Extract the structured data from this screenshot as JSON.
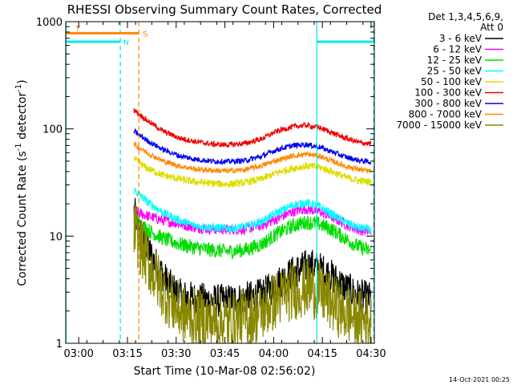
{
  "chart_data": {
    "type": "line",
    "title": "RHESSI Observing Summary Count Rates, Corrected",
    "xlabel": "Start Time (10-Mar-08 02:56:02)",
    "ylabel_main": "Corrected Count Rate (s",
    "ylabel_sup1": "-1",
    "ylabel_mid": " detector",
    "ylabel_sup2": "-1",
    "ylabel_end": ")",
    "yscale": "log",
    "ylim": [
      1,
      1000
    ],
    "xlim": [
      0,
      95
    ],
    "x_unit": "minutes since start",
    "x_ticks": [
      {
        "v": 4,
        "label": "03:00"
      },
      {
        "v": 19,
        "label": "03:15"
      },
      {
        "v": 34,
        "label": "03:30"
      },
      {
        "v": 49,
        "label": "03:45"
      },
      {
        "v": 64,
        "label": "04:00"
      },
      {
        "v": 79,
        "label": "04:15"
      },
      {
        "v": 94,
        "label": "04:30"
      }
    ],
    "y_ticks": [
      {
        "v": 1,
        "label": "1"
      },
      {
        "v": 10,
        "label": "10"
      },
      {
        "v": 100,
        "label": "100"
      },
      {
        "v": 1000,
        "label": "1000"
      }
    ],
    "legend": {
      "header1": "Det 1,3,4,5,6,9,",
      "header2": "Att 0",
      "entries": [
        {
          "label": "3 - 6 keV",
          "color": "#000000"
        },
        {
          "label": "6 - 12 keV",
          "color": "#ff00ff"
        },
        {
          "label": "12 - 25 keV",
          "color": "#00dd00"
        },
        {
          "label": "25 - 50 keV",
          "color": "#00ffff"
        },
        {
          "label": "50 - 100 keV",
          "color": "#dddd00"
        },
        {
          "label": "100 - 300 keV",
          "color": "#ee0000"
        },
        {
          "label": "300 - 800 keV",
          "color": "#0000ee"
        },
        {
          "label": "800 - 7000 keV",
          "color": "#ff8800"
        },
        {
          "label": "7000 - 15000 keV",
          "color": "#888800"
        }
      ]
    },
    "series": [
      {
        "name": "3 - 6 keV",
        "color": "#000000",
        "points": [
          [
            21,
            17
          ],
          [
            23,
            11
          ],
          [
            25,
            8
          ],
          [
            27,
            6
          ],
          [
            29,
            4.8
          ],
          [
            31,
            3.8
          ],
          [
            33,
            3.2
          ],
          [
            35,
            2.8
          ],
          [
            37,
            2.7
          ],
          [
            40,
            2.6
          ],
          [
            45,
            2.5
          ],
          [
            50,
            2.5
          ],
          [
            55,
            2.6
          ],
          [
            60,
            2.8
          ],
          [
            63,
            3.2
          ],
          [
            66,
            3.8
          ],
          [
            70,
            4.6
          ],
          [
            74,
            5.2
          ],
          [
            76,
            5.3
          ],
          [
            78,
            5.0
          ],
          [
            82,
            4.2
          ],
          [
            86,
            3.3
          ],
          [
            90,
            2.8
          ],
          [
            94,
            2.6
          ]
        ],
        "noise": 0.16
      },
      {
        "name": "6 - 12 keV",
        "color": "#ff00ff",
        "points": [
          [
            21,
            17
          ],
          [
            25,
            15.5
          ],
          [
            30,
            14
          ],
          [
            35,
            13
          ],
          [
            40,
            12
          ],
          [
            45,
            11.6
          ],
          [
            50,
            11.5
          ],
          [
            55,
            11.6
          ],
          [
            60,
            12.5
          ],
          [
            65,
            14.5
          ],
          [
            70,
            17
          ],
          [
            74,
            18
          ],
          [
            78,
            17
          ],
          [
            82,
            15
          ],
          [
            86,
            13
          ],
          [
            90,
            11.5
          ],
          [
            94,
            11
          ]
        ],
        "noise": 0.05
      },
      {
        "name": "12 - 25 keV",
        "color": "#00dd00",
        "points": [
          [
            21,
            15
          ],
          [
            25,
            11.5
          ],
          [
            30,
            9.5
          ],
          [
            35,
            8.4
          ],
          [
            40,
            7.8
          ],
          [
            45,
            7.4
          ],
          [
            50,
            7.2
          ],
          [
            55,
            7.4
          ],
          [
            60,
            8.3
          ],
          [
            65,
            10.5
          ],
          [
            70,
            12.5
          ],
          [
            74,
            13.5
          ],
          [
            78,
            13
          ],
          [
            82,
            11.5
          ],
          [
            86,
            9.5
          ],
          [
            90,
            8
          ],
          [
            94,
            7.2
          ]
        ],
        "noise": 0.07
      },
      {
        "name": "25 - 50 keV",
        "color": "#00ffff",
        "points": [
          [
            21,
            27
          ],
          [
            25,
            21
          ],
          [
            30,
            16.5
          ],
          [
            35,
            14
          ],
          [
            40,
            12.5
          ],
          [
            45,
            12
          ],
          [
            50,
            11.8
          ],
          [
            55,
            12.2
          ],
          [
            60,
            13.5
          ],
          [
            65,
            16.5
          ],
          [
            70,
            19.5
          ],
          [
            74,
            20.5
          ],
          [
            78,
            19
          ],
          [
            82,
            16
          ],
          [
            86,
            13.5
          ],
          [
            90,
            12
          ],
          [
            94,
            11.5
          ]
        ],
        "noise": 0.04
      },
      {
        "name": "50 - 100 keV",
        "color": "#dddd00",
        "points": [
          [
            21,
            52
          ],
          [
            25,
            43
          ],
          [
            30,
            37
          ],
          [
            35,
            34
          ],
          [
            40,
            32
          ],
          [
            45,
            31
          ],
          [
            50,
            30.5
          ],
          [
            55,
            31.5
          ],
          [
            60,
            34
          ],
          [
            65,
            39
          ],
          [
            70,
            43
          ],
          [
            74,
            45
          ],
          [
            78,
            44
          ],
          [
            82,
            40
          ],
          [
            86,
            35.5
          ],
          [
            90,
            33
          ],
          [
            94,
            32
          ]
        ],
        "noise": 0.035
      },
      {
        "name": "100 - 300 keV",
        "color": "#ee0000",
        "points": [
          [
            21,
            150
          ],
          [
            25,
            120
          ],
          [
            30,
            95
          ],
          [
            35,
            82
          ],
          [
            40,
            76
          ],
          [
            45,
            72
          ],
          [
            50,
            71
          ],
          [
            55,
            73
          ],
          [
            60,
            80
          ],
          [
            65,
            95
          ],
          [
            70,
            105
          ],
          [
            74,
            108
          ],
          [
            78,
            103
          ],
          [
            82,
            92
          ],
          [
            86,
            82
          ],
          [
            90,
            75
          ],
          [
            94,
            72
          ]
        ],
        "noise": 0.025
      },
      {
        "name": "300 - 800 keV",
        "color": "#0000ee",
        "points": [
          [
            21,
            95
          ],
          [
            25,
            78
          ],
          [
            30,
            64
          ],
          [
            35,
            56
          ],
          [
            40,
            52
          ],
          [
            45,
            50
          ],
          [
            50,
            49.5
          ],
          [
            55,
            50.5
          ],
          [
            60,
            55
          ],
          [
            65,
            64
          ],
          [
            70,
            70
          ],
          [
            74,
            71.5
          ],
          [
            78,
            68
          ],
          [
            82,
            61
          ],
          [
            86,
            55
          ],
          [
            90,
            51
          ],
          [
            94,
            49
          ]
        ],
        "noise": 0.025
      },
      {
        "name": "800 - 7000 keV",
        "color": "#ff8800",
        "points": [
          [
            21,
            72
          ],
          [
            25,
            60
          ],
          [
            30,
            50
          ],
          [
            35,
            45
          ],
          [
            40,
            42
          ],
          [
            45,
            41
          ],
          [
            50,
            40.5
          ],
          [
            55,
            41.5
          ],
          [
            60,
            45
          ],
          [
            65,
            51
          ],
          [
            70,
            56
          ],
          [
            74,
            58
          ],
          [
            78,
            56
          ],
          [
            82,
            50
          ],
          [
            86,
            45
          ],
          [
            90,
            42
          ],
          [
            94,
            40
          ]
        ],
        "noise": 0.025
      },
      {
        "name": "7000 - 15000 keV",
        "color": "#888800",
        "points": [
          [
            21,
            12
          ],
          [
            23,
            8
          ],
          [
            25,
            6
          ],
          [
            27,
            4.5
          ],
          [
            29,
            3.5
          ],
          [
            31,
            2.8
          ],
          [
            33,
            2.3
          ],
          [
            35,
            2.0
          ],
          [
            37,
            1.8
          ],
          [
            40,
            1.7
          ],
          [
            45,
            1.6
          ],
          [
            50,
            1.6
          ],
          [
            55,
            1.7
          ],
          [
            60,
            1.9
          ],
          [
            63,
            2.3
          ],
          [
            66,
            2.7
          ],
          [
            70,
            3.1
          ],
          [
            74,
            3.3
          ],
          [
            76,
            3.2
          ],
          [
            78,
            3.0
          ],
          [
            82,
            2.4
          ],
          [
            86,
            1.9
          ],
          [
            90,
            1.7
          ],
          [
            94,
            1.6
          ]
        ],
        "noise": 0.28
      }
    ],
    "attenuator_line": {
      "color": "#ff8800",
      "x_start": 0,
      "x_end": 22.5,
      "y": 780,
      "label_left": "T",
      "label_right": "S"
    },
    "night_line": {
      "color": "#00e8e8",
      "segments": [
        [
          0,
          16.8,
          650
        ],
        [
          77.3,
          95,
          650
        ]
      ],
      "label": "N"
    },
    "vertical_markers": [
      {
        "x": 16.8,
        "color": "#00e8e8",
        "style": "dashed"
      },
      {
        "x": 22.5,
        "color": "#ff8800",
        "style": "dashed"
      },
      {
        "x": 77.3,
        "color": "#00e8e8",
        "style": "solid"
      },
      {
        "x": 94.8,
        "color": "#00e8e8",
        "style": "dashed"
      },
      {
        "x": 0.1,
        "color": "#00e8e8",
        "style": "solid"
      }
    ],
    "footer_timestamp": "14-Oct-2021 00:25"
  }
}
